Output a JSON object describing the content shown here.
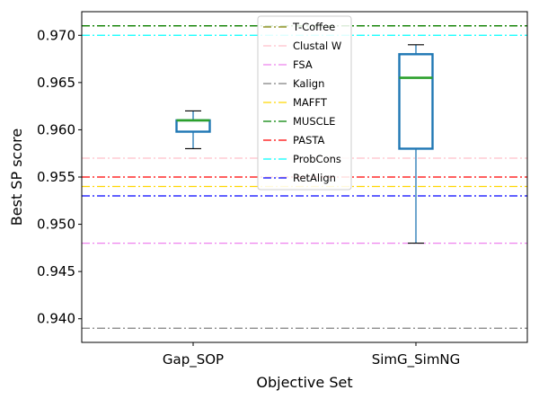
{
  "chart_data": {
    "type": "box",
    "xlabel": "Objective Set",
    "ylabel": "Best SP score",
    "ylim": [
      0.9375,
      0.9725
    ],
    "yticks": [
      0.94,
      0.945,
      0.95,
      0.955,
      0.96,
      0.965,
      0.97
    ],
    "ytick_labels": [
      "0.940",
      "0.945",
      "0.950",
      "0.955",
      "0.960",
      "0.965",
      "0.970"
    ],
    "categories": [
      "Gap_SOP",
      "SimG_SimNG"
    ],
    "boxes": [
      {
        "name": "Gap_SOP",
        "whislo": 0.958,
        "q1": 0.9598,
        "med": 0.961,
        "q3": 0.961,
        "whishi": 0.962
      },
      {
        "name": "SimG_SimNG",
        "whislo": 0.948,
        "q1": 0.958,
        "med": 0.9655,
        "q3": 0.968,
        "whishi": 0.969
      }
    ],
    "reference_lines": [
      {
        "name": "T-Coffee",
        "value": 0.971,
        "color": "#808000",
        "style": "dashdot"
      },
      {
        "name": "Clustal W",
        "value": 0.957,
        "color": "#ffc0cb",
        "style": "dashdot"
      },
      {
        "name": "FSA",
        "value": 0.948,
        "color": "#ee82ee",
        "style": "dashdot"
      },
      {
        "name": "Kalign",
        "value": 0.939,
        "color": "#808080",
        "style": "dashdot"
      },
      {
        "name": "MAFFT",
        "value": 0.954,
        "color": "#ffd700",
        "style": "dashdot"
      },
      {
        "name": "MUSCLE",
        "value": 0.971,
        "color": "#008000",
        "style": "dashdot"
      },
      {
        "name": "PASTA",
        "value": 0.955,
        "color": "#ff0000",
        "style": "dashdot"
      },
      {
        "name": "ProbCons",
        "value": 0.97,
        "color": "#00ffff",
        "style": "dashdot"
      },
      {
        "name": "RetAlign",
        "value": 0.953,
        "color": "#0000ff",
        "style": "dashdot"
      }
    ],
    "box_color": "#1f77b4",
    "median_color": "#2ca02c",
    "legend_placement": "top-center",
    "grid": false
  }
}
